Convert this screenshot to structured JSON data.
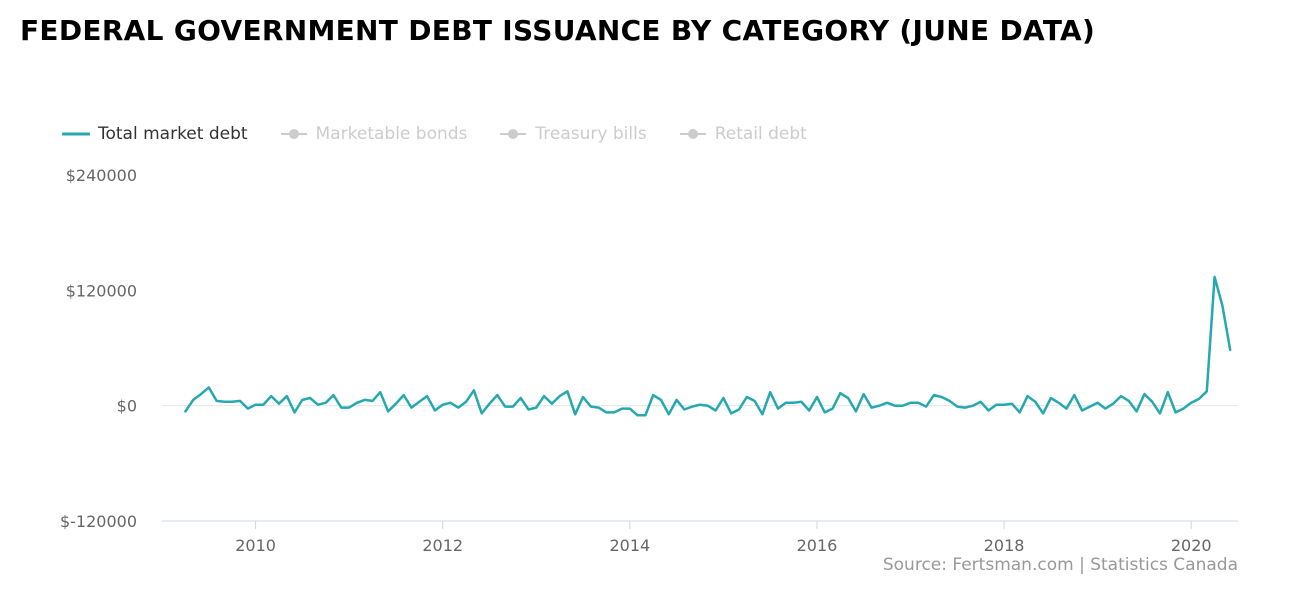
{
  "header": {
    "title": "FEDERAL GOVERNMENT DEBT ISSUANCE BY CATEGORY (JUNE DATA)"
  },
  "legend": {
    "items": [
      {
        "label": "Total market debt",
        "visible": true,
        "color": "#26a8b0"
      },
      {
        "label": "Marketable bonds",
        "visible": false,
        "color": "#cccccc"
      },
      {
        "label": "Treasury bills",
        "visible": false,
        "color": "#cccccc"
      },
      {
        "label": "Retail debt",
        "visible": false,
        "color": "#cccccc"
      }
    ]
  },
  "source": "Source: Fertsman.com | Statistics Canada",
  "chart_data": {
    "type": "line",
    "title": "FEDERAL GOVERNMENT DEBT ISSUANCE BY CATEGORY (JUNE DATA)",
    "xlabel": "",
    "ylabel": "",
    "xlim": [
      "2009-01",
      "2020-07"
    ],
    "ylim": [
      -120000,
      240000
    ],
    "y_ticks": [
      -120000,
      0,
      120000,
      240000
    ],
    "y_tick_labels": [
      "$-120000",
      "$0",
      "$120000",
      "$240000"
    ],
    "x_ticks": [
      "2010-01",
      "2012-01",
      "2014-01",
      "2016-01",
      "2018-01",
      "2020-01"
    ],
    "x_tick_labels": [
      "2010",
      "2012",
      "2014",
      "2016",
      "2018",
      "2020"
    ],
    "grid": false,
    "legend_position": "top-left",
    "series": [
      {
        "name": "Total market debt",
        "color": "#26a8b0",
        "start": "2009-04",
        "frequency": "monthly",
        "values": [
          -6000,
          6000,
          12000,
          19000,
          5000,
          4000,
          4000,
          5000,
          -3000,
          1000,
          1000,
          10000,
          2000,
          10000,
          -7000,
          6000,
          8000,
          1000,
          3000,
          11000,
          -2000,
          -2000,
          3000,
          6000,
          5000,
          14000,
          -6000,
          2000,
          11000,
          -2000,
          4000,
          10000,
          -5000,
          1000,
          3000,
          -2000,
          4000,
          16000,
          -8000,
          2000,
          11000,
          -1000,
          -1000,
          8000,
          -4000,
          -2000,
          10000,
          2000,
          10000,
          15000,
          -9000,
          9000,
          -1000,
          -2000,
          -7000,
          -7000,
          -3000,
          -3000,
          -10000,
          -10000,
          11000,
          6000,
          -9000,
          6000,
          -4000,
          -1000,
          1000,
          0,
          -5000,
          8000,
          -8000,
          -4000,
          9000,
          5000,
          -9000,
          14000,
          -3000,
          3000,
          3000,
          4000,
          -5000,
          9000,
          -7000,
          -3000,
          13000,
          8000,
          -6000,
          12000,
          -2000,
          0,
          3000,
          0,
          0,
          3000,
          3000,
          -1000,
          11000,
          9000,
          5000,
          -1000,
          -2000,
          0,
          4000,
          -5000,
          1000,
          1000,
          2000,
          -7000,
          10000,
          4000,
          -8000,
          8000,
          3000,
          -3000,
          11000,
          -5000,
          -1000,
          3000,
          -3000,
          2000,
          10000,
          5000,
          -6000,
          12000,
          4000,
          -8000,
          14000,
          -7000,
          -3000,
          3000,
          7000,
          15000,
          134000,
          104000,
          58000
        ]
      }
    ]
  }
}
